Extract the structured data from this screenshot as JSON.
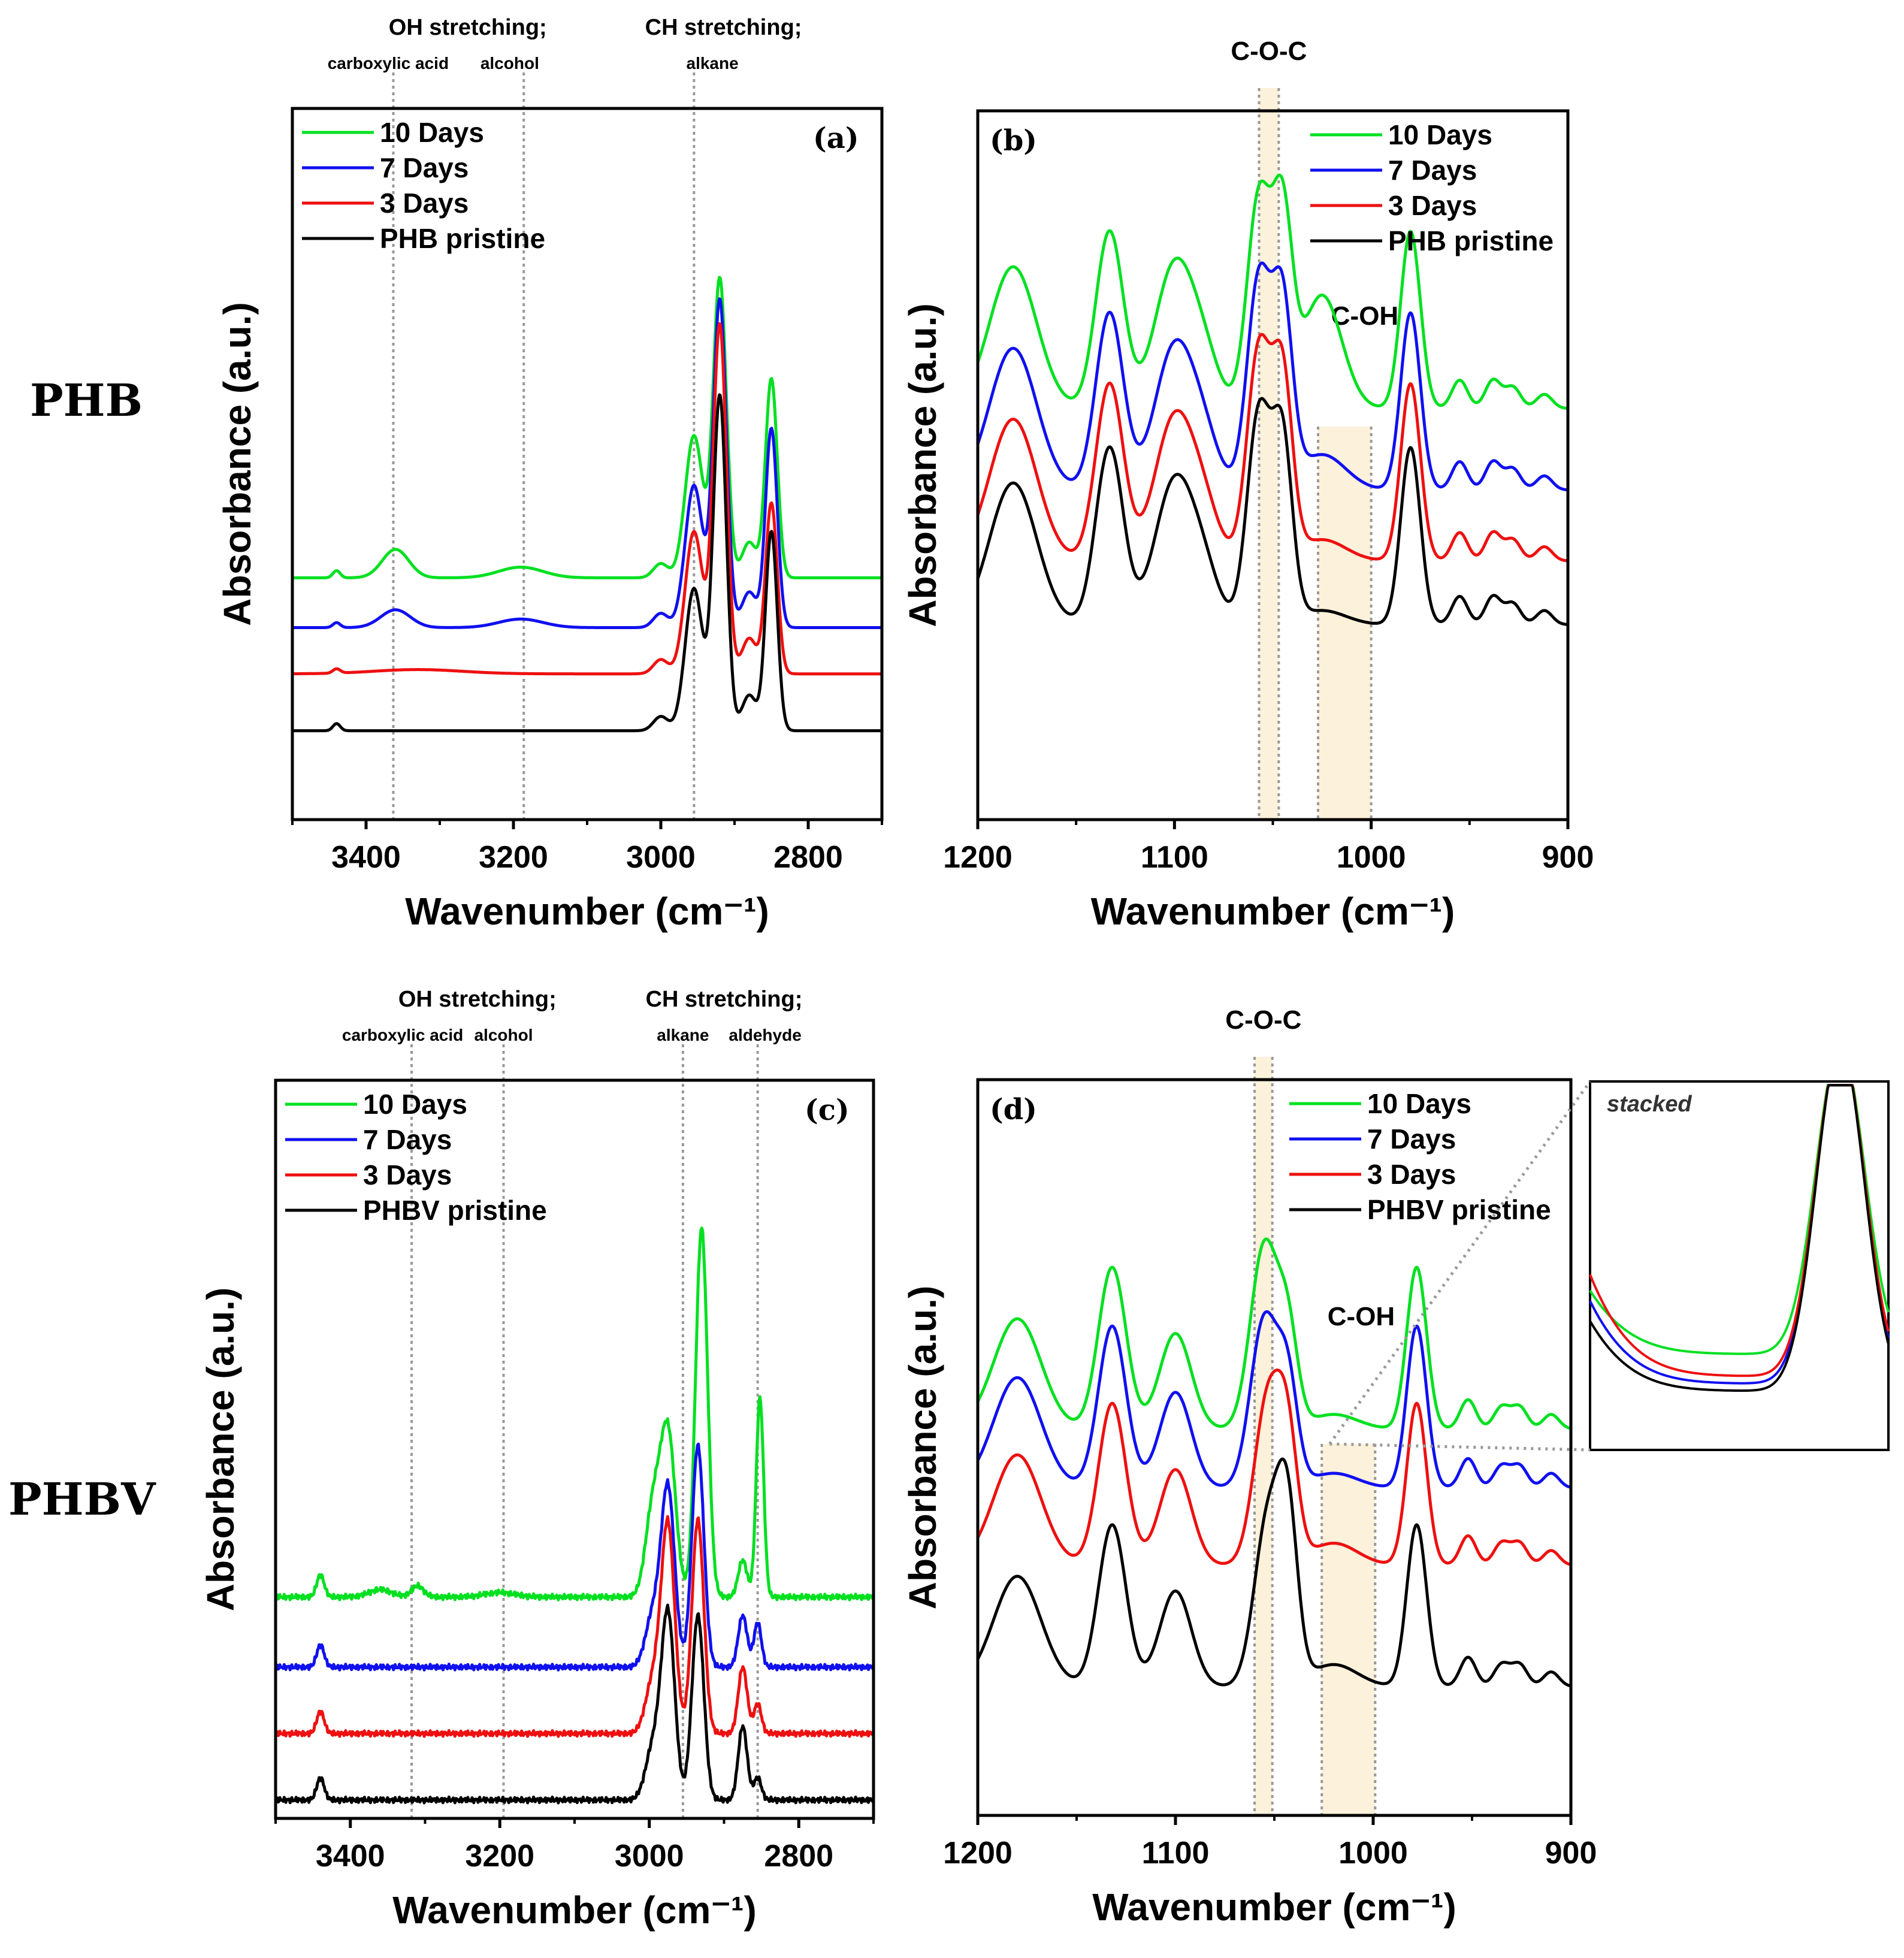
{
  "row_labels": {
    "phb": "PHB",
    "phbv": "PHBV"
  },
  "colors": {
    "10 Days": "#00e020",
    "7 Days": "#1010f0",
    "3 Days": "#ee1010",
    "pristine": "#000000",
    "band": "#fcf1da",
    "dashed": "#999999"
  },
  "chart_data": [
    {
      "id": "a",
      "type": "line",
      "tag": "(a)",
      "xlabel": "Wavenumber (cm⁻¹)",
      "ylabel": "Absorbance (a.u.)",
      "xlim": [
        3500,
        2700
      ],
      "ylim": [
        0,
        1.0
      ],
      "xticks": [
        3400,
        3200,
        3000,
        2800
      ],
      "legend": [
        "10 Days",
        "7 Days",
        "3 Days",
        "PHB pristine"
      ],
      "series": [
        {
          "name": "10 Days",
          "offset": 0.34,
          "peaks": [
            [
              3440,
              0.01,
              5
            ],
            [
              3360,
              0.04,
              18
            ],
            [
              3190,
              0.015,
              30
            ],
            [
              3000,
              0.02,
              10
            ],
            [
              2955,
              0.2,
              12
            ],
            [
              2920,
              0.42,
              9
            ],
            [
              2880,
              0.05,
              10
            ],
            [
              2850,
              0.28,
              8
            ]
          ]
        },
        {
          "name": "7 Days",
          "offset": 0.27,
          "peaks": [
            [
              3440,
              0.007,
              5
            ],
            [
              3360,
              0.025,
              20
            ],
            [
              3190,
              0.012,
              30
            ],
            [
              3000,
              0.02,
              10
            ],
            [
              2955,
              0.2,
              12
            ],
            [
              2920,
              0.46,
              9
            ],
            [
              2880,
              0.05,
              10
            ],
            [
              2850,
              0.28,
              8
            ]
          ]
        },
        {
          "name": "3 Days",
          "offset": 0.205,
          "peaks": [
            [
              3440,
              0.006,
              5
            ],
            [
              3330,
              0.006,
              60
            ],
            [
              3000,
              0.02,
              10
            ],
            [
              2955,
              0.2,
              12
            ],
            [
              2920,
              0.49,
              9
            ],
            [
              2880,
              0.05,
              10
            ],
            [
              2850,
              0.24,
              8
            ]
          ]
        },
        {
          "name": "PHB pristine",
          "offset": 0.125,
          "peaks": [
            [
              3440,
              0.01,
              5
            ],
            [
              3000,
              0.02,
              10
            ],
            [
              2955,
              0.2,
              12
            ],
            [
              2920,
              0.47,
              9
            ],
            [
              2880,
              0.05,
              10
            ],
            [
              2850,
              0.28,
              8
            ]
          ]
        }
      ],
      "annotations": [
        {
          "label": "OH stretching;",
          "x": 3262,
          "level": "main"
        },
        {
          "label": "carboxylic acid",
          "x": 3370,
          "level": "sub"
        },
        {
          "label": "alcohol",
          "x": 3205,
          "level": "sub"
        },
        {
          "label": "CH stretching;",
          "x": 2915,
          "level": "main"
        },
        {
          "label": "alkane",
          "x": 2930,
          "level": "sub"
        }
      ],
      "vlines": [
        3363,
        3186,
        2955
      ]
    },
    {
      "id": "b",
      "type": "line",
      "tag": "(b)",
      "xlabel": "Wavenumber (cm⁻¹)",
      "ylabel": "Absorbance (a.u.)",
      "xlim": [
        1200,
        900
      ],
      "ylim": [
        0,
        1.0
      ],
      "xticks": [
        1200,
        1100,
        1000,
        900
      ],
      "legend": [
        "10 Days",
        "7 Days",
        "3 Days",
        "PHB pristine"
      ],
      "series": [
        {
          "name": "10 Days",
          "offset": 0.58,
          "peaks": [
            [
              1182,
              0.2,
              12
            ],
            [
              1133,
              0.25,
              7
            ],
            [
              1100,
              0.2,
              10
            ],
            [
              1085,
              0.06,
              8
            ],
            [
              1057,
              0.3,
              6
            ],
            [
              1045,
              0.26,
              5
            ],
            [
              1025,
              0.16,
              10
            ],
            [
              980,
              0.25,
              5
            ],
            [
              955,
              0.04,
              4
            ],
            [
              938,
              0.04,
              4
            ],
            [
              928,
              0.03,
              4
            ],
            [
              912,
              0.02,
              4
            ]
          ]
        },
        {
          "name": "7 Days",
          "offset": 0.465,
          "peaks": [
            [
              1182,
              0.2,
              12
            ],
            [
              1133,
              0.25,
              7
            ],
            [
              1100,
              0.2,
              10
            ],
            [
              1085,
              0.06,
              8
            ],
            [
              1057,
              0.3,
              6
            ],
            [
              1045,
              0.25,
              5
            ],
            [
              1025,
              0.05,
              12
            ],
            [
              980,
              0.25,
              5
            ],
            [
              955,
              0.04,
              4
            ],
            [
              938,
              0.04,
              4
            ],
            [
              928,
              0.03,
              4
            ],
            [
              912,
              0.02,
              4
            ]
          ]
        },
        {
          "name": "3 Days",
          "offset": 0.365,
          "peaks": [
            [
              1182,
              0.2,
              12
            ],
            [
              1133,
              0.25,
              7
            ],
            [
              1100,
              0.2,
              10
            ],
            [
              1085,
              0.06,
              8
            ],
            [
              1057,
              0.3,
              6
            ],
            [
              1045,
              0.25,
              5
            ],
            [
              1025,
              0.03,
              12
            ],
            [
              980,
              0.25,
              5
            ],
            [
              955,
              0.04,
              4
            ],
            [
              938,
              0.04,
              4
            ],
            [
              928,
              0.03,
              4
            ],
            [
              912,
              0.02,
              4
            ]
          ]
        },
        {
          "name": "PHB pristine",
          "offset": 0.275,
          "peaks": [
            [
              1182,
              0.2,
              12
            ],
            [
              1133,
              0.25,
              7
            ],
            [
              1100,
              0.2,
              10
            ],
            [
              1085,
              0.06,
              8
            ],
            [
              1057,
              0.3,
              6
            ],
            [
              1045,
              0.25,
              5
            ],
            [
              1025,
              0.02,
              12
            ],
            [
              980,
              0.25,
              5
            ],
            [
              955,
              0.04,
              4
            ],
            [
              938,
              0.04,
              4
            ],
            [
              928,
              0.03,
              4
            ],
            [
              912,
              0.02,
              4
            ]
          ]
        }
      ],
      "bands": [
        {
          "label": "C-O-C",
          "from": 1057,
          "to": 1047,
          "position": "top"
        },
        {
          "label": "C-OH",
          "from": 1027,
          "to": 1000,
          "position": "inside"
        }
      ]
    },
    {
      "id": "c",
      "type": "line",
      "tag": "(c)",
      "xlabel": "Wavenumber (cm⁻¹)",
      "ylabel": "Absorbance (a.u.)",
      "xlim": [
        3500,
        2700
      ],
      "ylim": [
        0,
        1.0
      ],
      "xticks": [
        3400,
        3200,
        3000,
        2800
      ],
      "legend": [
        "10 Days",
        "7 Days",
        "3 Days",
        "PHBV pristine"
      ],
      "series": [
        {
          "name": "10 Days",
          "offset": 0.3,
          "peaks": [
            [
              3440,
              0.03,
              5
            ],
            [
              3360,
              0.01,
              15
            ],
            [
              3310,
              0.015,
              8
            ],
            [
              3200,
              0.006,
              20
            ],
            [
              2995,
              0.12,
              10
            ],
            [
              2975,
              0.22,
              10
            ],
            [
              2930,
              0.5,
              8
            ],
            [
              2875,
              0.05,
              6
            ],
            [
              2852,
              0.27,
              5
            ]
          ]
        },
        {
          "name": "7 Days",
          "offset": 0.205,
          "peaks": [
            [
              3440,
              0.03,
              5
            ],
            [
              2995,
              0.07,
              10
            ],
            [
              2975,
              0.24,
              9
            ],
            [
              2935,
              0.3,
              8
            ],
            [
              2875,
              0.07,
              6
            ],
            [
              2855,
              0.06,
              5
            ]
          ]
        },
        {
          "name": "3 Days",
          "offset": 0.115,
          "peaks": [
            [
              3440,
              0.03,
              5
            ],
            [
              2995,
              0.07,
              10
            ],
            [
              2975,
              0.28,
              9
            ],
            [
              2935,
              0.29,
              8
            ],
            [
              2875,
              0.09,
              6
            ],
            [
              2855,
              0.04,
              5
            ]
          ]
        },
        {
          "name": "PHBV pristine",
          "offset": 0.025,
          "peaks": [
            [
              3440,
              0.03,
              5
            ],
            [
              2995,
              0.07,
              10
            ],
            [
              2975,
              0.25,
              9
            ],
            [
              2935,
              0.25,
              8
            ],
            [
              2875,
              0.1,
              6
            ],
            [
              2855,
              0.03,
              5
            ]
          ]
        }
      ],
      "annotations": [
        {
          "label": "OH stretching;",
          "x": 3230,
          "level": "main"
        },
        {
          "label": "carboxylic acid",
          "x": 3330,
          "level": "sub"
        },
        {
          "label": "alcohol",
          "x": 3195,
          "level": "sub"
        },
        {
          "label": "CH stretching;",
          "x": 2900,
          "level": "main"
        },
        {
          "label": "alkane",
          "x": 2955,
          "level": "sub"
        },
        {
          "label": "aldehyde",
          "x": 2845,
          "level": "sub"
        }
      ],
      "vlines": [
        3318,
        3195,
        2955,
        2855
      ]
    },
    {
      "id": "d",
      "type": "line",
      "tag": "(d)",
      "xlabel": "Wavenumber (cm⁻¹)",
      "ylabel": "Absorbance (a.u.)",
      "xlim": [
        1200,
        900
      ],
      "ylim": [
        0,
        1.0
      ],
      "xticks": [
        1200,
        1100,
        1000,
        900
      ],
      "legend": [
        "10 Days",
        "7 Days",
        "3 Days",
        "PHBV pristine"
      ],
      "series": [
        {
          "name": "10 Days",
          "offset": 0.525,
          "peaks": [
            [
              1180,
              0.15,
              12
            ],
            [
              1132,
              0.22,
              7
            ],
            [
              1100,
              0.13,
              8
            ],
            [
              1055,
              0.25,
              7
            ],
            [
              1043,
              0.12,
              5
            ],
            [
              1020,
              0.02,
              12
            ],
            [
              978,
              0.22,
              5
            ],
            [
              952,
              0.04,
              4
            ],
            [
              935,
              0.03,
              4
            ],
            [
              926,
              0.03,
              4
            ],
            [
              910,
              0.02,
              4
            ]
          ]
        },
        {
          "name": "7 Days",
          "offset": 0.445,
          "peaks": [
            [
              1180,
              0.15,
              12
            ],
            [
              1132,
              0.22,
              7
            ],
            [
              1100,
              0.13,
              8
            ],
            [
              1055,
              0.23,
              7
            ],
            [
              1043,
              0.13,
              5
            ],
            [
              1020,
              0.02,
              12
            ],
            [
              978,
              0.22,
              5
            ],
            [
              952,
              0.04,
              4
            ],
            [
              935,
              0.03,
              4
            ],
            [
              926,
              0.03,
              4
            ],
            [
              910,
              0.02,
              4
            ]
          ]
        },
        {
          "name": "3 Days",
          "offset": 0.34,
          "peaks": [
            [
              1180,
              0.15,
              12
            ],
            [
              1132,
              0.22,
              7
            ],
            [
              1100,
              0.13,
              8
            ],
            [
              1053,
              0.23,
              7
            ],
            [
              1043,
              0.14,
              5
            ],
            [
              1020,
              0.03,
              12
            ],
            [
              978,
              0.22,
              5
            ],
            [
              952,
              0.04,
              4
            ],
            [
              935,
              0.03,
              4
            ],
            [
              926,
              0.03,
              4
            ],
            [
              910,
              0.02,
              4
            ]
          ]
        },
        {
          "name": "PHBV pristine",
          "offset": 0.175,
          "peaks": [
            [
              1180,
              0.15,
              12
            ],
            [
              1132,
              0.22,
              7
            ],
            [
              1100,
              0.13,
              8
            ],
            [
              1053,
              0.23,
              7
            ],
            [
              1043,
              0.2,
              5
            ],
            [
              1020,
              0.03,
              12
            ],
            [
              978,
              0.22,
              5
            ],
            [
              952,
              0.04,
              4
            ],
            [
              935,
              0.03,
              4
            ],
            [
              926,
              0.03,
              4
            ],
            [
              910,
              0.02,
              4
            ]
          ]
        }
      ],
      "bands": [
        {
          "label": "C-O-C",
          "from": 1060,
          "to": 1051,
          "position": "top"
        },
        {
          "label": "C-OH",
          "from": 1026,
          "to": 999,
          "position": "inside"
        }
      ],
      "inset": {
        "label": "stacked",
        "xlim": [
          1030,
          968
        ],
        "series": [
          {
            "name": "10 Days",
            "offset": 0.26,
            "peaks": [
              [
                1060,
                1.0,
                16
              ],
              [
                978,
                0.84,
                5
              ]
            ]
          },
          {
            "name": "7 Days",
            "offset": 0.18,
            "peaks": [
              [
                1060,
                1.3,
                16
              ],
              [
                978,
                0.92,
                5
              ]
            ]
          },
          {
            "name": "3 Days",
            "offset": 0.2,
            "peaks": [
              [
                1060,
                1.6,
                16
              ],
              [
                978,
                0.9,
                5
              ]
            ]
          },
          {
            "name": "PHBV pristine",
            "offset": 0.16,
            "peaks": [
              [
                1060,
                1.1,
                16
              ],
              [
                978,
                0.94,
                5
              ]
            ]
          }
        ]
      }
    }
  ]
}
